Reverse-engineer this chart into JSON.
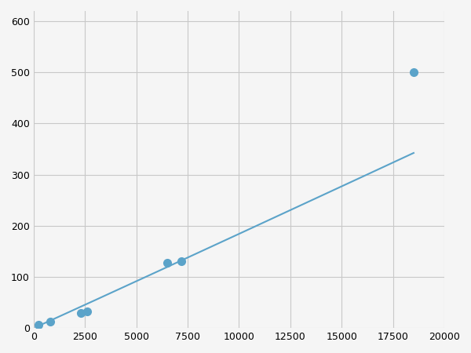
{
  "x": [
    250,
    800,
    2300,
    2600,
    6500,
    7200,
    18500
  ],
  "y": [
    7,
    12,
    30,
    33,
    128,
    130,
    500
  ],
  "line_color": "#5ba3c9",
  "marker_color": "#5ba3c9",
  "marker_size": 7,
  "linewidth": 1.5,
  "xlim": [
    0,
    20000
  ],
  "ylim": [
    0,
    620
  ],
  "xticks": [
    0,
    2500,
    5000,
    7500,
    10000,
    12500,
    15000,
    17500,
    20000
  ],
  "yticks": [
    0,
    100,
    200,
    300,
    400,
    500,
    600
  ],
  "grid_color": "#c8c8c8",
  "grid_linestyle": "-",
  "grid_linewidth": 0.8,
  "figure_facecolor": "#f5f5f5"
}
